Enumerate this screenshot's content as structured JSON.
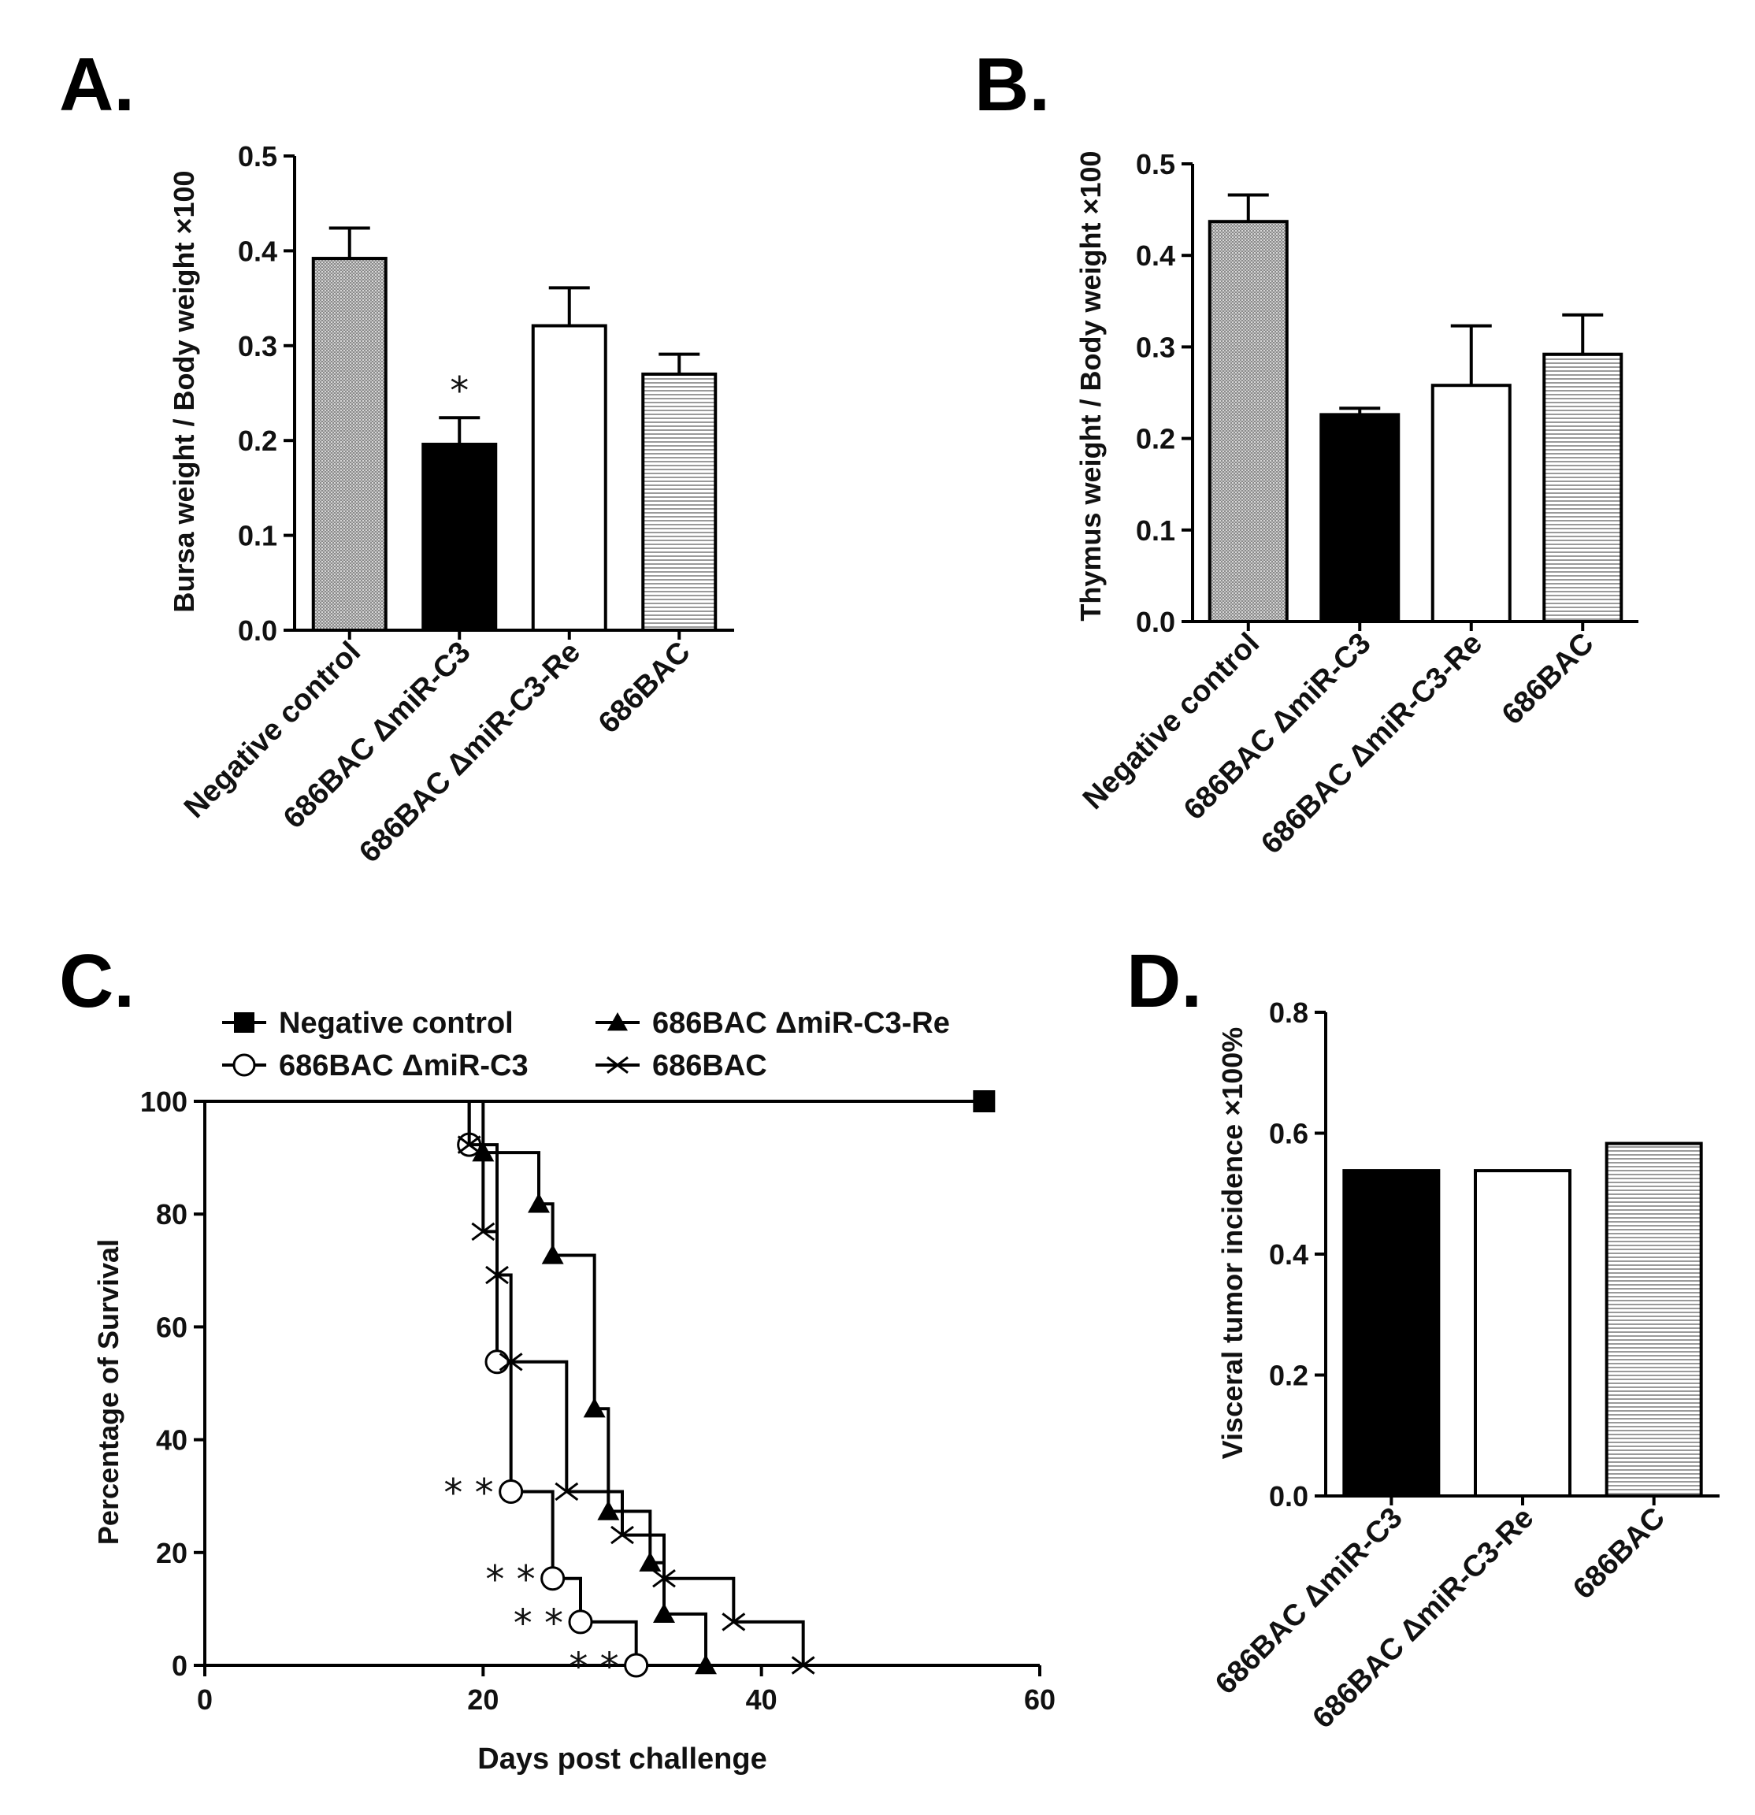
{
  "chart_data": [
    {
      "panel": "A.",
      "type": "bar",
      "categories": [
        "Negative control",
        "686BAC ΔmiR-C3",
        "686BAC ΔmiR-C3-Re",
        "686BAC"
      ],
      "values": [
        0.392,
        0.196,
        0.321,
        0.27
      ],
      "errors": [
        0.032,
        0.028,
        0.04,
        0.021
      ],
      "annotations": [
        "",
        "*",
        "",
        ""
      ],
      "ylabel": "Bursa weight / Body weight ×100",
      "xlabel": "",
      "ylim": [
        0,
        0.5
      ],
      "yticks": [
        0.0,
        0.1,
        0.2,
        0.3,
        0.4,
        0.5
      ],
      "ytick_labels": [
        "0.0",
        "0.1",
        "0.2",
        "0.3",
        "0.4",
        "0.5"
      ],
      "fills": [
        "dense-hatch",
        "solid-black",
        "white",
        "horizontal-lines"
      ]
    },
    {
      "panel": "B.",
      "type": "bar",
      "categories": [
        "Negative control",
        "686BAC ΔmiR-C3",
        "686BAC ΔmiR-C3-Re",
        "686BAC"
      ],
      "values": [
        0.437,
        0.226,
        0.258,
        0.292
      ],
      "errors": [
        0.029,
        0.007,
        0.065,
        0.043
      ],
      "annotations": [
        "",
        "",
        "",
        ""
      ],
      "ylabel": "Thymus weight / Body weight ×100",
      "xlabel": "",
      "ylim": [
        0,
        0.5
      ],
      "yticks": [
        0.0,
        0.1,
        0.2,
        0.3,
        0.4,
        0.5
      ],
      "ytick_labels": [
        "0.0",
        "0.1",
        "0.2",
        "0.3",
        "0.4",
        "0.5"
      ],
      "fills": [
        "dense-hatch",
        "solid-black",
        "white",
        "horizontal-lines"
      ]
    },
    {
      "panel": "C.",
      "type": "line",
      "subtype": "kaplan-meier",
      "xlabel": "Days post  challenge",
      "ylabel": "Percentage of Survival",
      "xlim": [
        0,
        60
      ],
      "ylim": [
        0,
        100
      ],
      "xticks": [
        0,
        20,
        40,
        60
      ],
      "xtick_labels": [
        "0",
        "20",
        "40",
        "60"
      ],
      "yticks": [
        0,
        20,
        40,
        60,
        80,
        100
      ],
      "ytick_labels": [
        "0",
        "20",
        "40",
        "60",
        "80",
        "100"
      ],
      "legend_position": "top",
      "series": [
        {
          "name": "Negative control",
          "marker": "filled-square",
          "steps": [
            [
              0,
              100
            ],
            [
              56,
              100
            ]
          ],
          "markers": [
            [
              56,
              100
            ]
          ]
        },
        {
          "name": "686BAC ΔmiR-C3",
          "marker": "open-circle",
          "steps": [
            [
              0,
              100
            ],
            [
              19,
              100
            ],
            [
              19,
              92.3
            ],
            [
              21,
              92.3
            ],
            [
              21,
              53.8
            ],
            [
              22,
              53.8
            ],
            [
              22,
              30.8
            ],
            [
              25,
              30.8
            ],
            [
              25,
              15.4
            ],
            [
              27,
              15.4
            ],
            [
              27,
              7.7
            ],
            [
              31,
              7.7
            ],
            [
              31,
              0
            ]
          ],
          "markers": [
            [
              19,
              92.3
            ],
            [
              21,
              53.8
            ],
            [
              22,
              30.8
            ],
            [
              25,
              15.4
            ],
            [
              27,
              7.7
            ],
            [
              31,
              0
            ]
          ]
        },
        {
          "name": "686BAC ΔmiR-C3-Re",
          "marker": "filled-triangle",
          "steps": [
            [
              0,
              100
            ],
            [
              20,
              100
            ],
            [
              20,
              90.9
            ],
            [
              24,
              90.9
            ],
            [
              24,
              81.8
            ],
            [
              25,
              81.8
            ],
            [
              25,
              72.7
            ],
            [
              28,
              72.7
            ],
            [
              28,
              45.5
            ],
            [
              29,
              45.5
            ],
            [
              29,
              27.3
            ],
            [
              32,
              27.3
            ],
            [
              32,
              18.2
            ],
            [
              33,
              18.2
            ],
            [
              33,
              9.1
            ],
            [
              36,
              9.1
            ],
            [
              36,
              0
            ]
          ],
          "markers": [
            [
              20,
              90.9
            ],
            [
              24,
              81.8
            ],
            [
              25,
              72.7
            ],
            [
              28,
              45.5
            ],
            [
              29,
              27.3
            ],
            [
              32,
              18.2
            ],
            [
              33,
              9.1
            ],
            [
              36,
              0
            ]
          ]
        },
        {
          "name": "686BAC",
          "marker": "x-cross",
          "steps": [
            [
              0,
              100
            ],
            [
              19,
              100
            ],
            [
              19,
              92.3
            ],
            [
              20,
              92.3
            ],
            [
              20,
              76.9
            ],
            [
              21,
              76.9
            ],
            [
              21,
              69.2
            ],
            [
              22,
              69.2
            ],
            [
              22,
              53.8
            ],
            [
              26,
              53.8
            ],
            [
              26,
              30.8
            ],
            [
              30,
              30.8
            ],
            [
              30,
              23.1
            ],
            [
              33,
              23.1
            ],
            [
              33,
              15.4
            ],
            [
              38,
              15.4
            ],
            [
              38,
              7.7
            ],
            [
              43,
              7.7
            ],
            [
              43,
              0
            ]
          ],
          "markers": [
            [
              19,
              92.3
            ],
            [
              20,
              76.9
            ],
            [
              21,
              69.2
            ],
            [
              22,
              53.8
            ],
            [
              26,
              30.8
            ],
            [
              30,
              23.1
            ],
            [
              33,
              15.4
            ],
            [
              38,
              7.7
            ],
            [
              43,
              0
            ]
          ]
        }
      ],
      "annotations": [
        {
          "text": "* *",
          "x": 22,
          "y": 30.8
        },
        {
          "text": "* *",
          "x": 25,
          "y": 15.4
        },
        {
          "text": "* *",
          "x": 27,
          "y": 7.7
        },
        {
          "text": "* *",
          "x": 31,
          "y": 0
        }
      ]
    },
    {
      "panel": "D.",
      "type": "bar",
      "categories": [
        "686BAC ΔmiR-C3",
        "686BAC ΔmiR-C3-Re",
        "686BAC"
      ],
      "values": [
        0.538,
        0.538,
        0.583
      ],
      "ylabel": "Visceral tumor incidence ×100%",
      "xlabel": "",
      "ylim": [
        0,
        0.8
      ],
      "yticks": [
        0.0,
        0.2,
        0.4,
        0.6,
        0.8
      ],
      "ytick_labels": [
        "0.0",
        "0.2",
        "0.4",
        "0.6",
        "0.8"
      ],
      "fills": [
        "solid-black",
        "white",
        "horizontal-lines"
      ]
    }
  ]
}
